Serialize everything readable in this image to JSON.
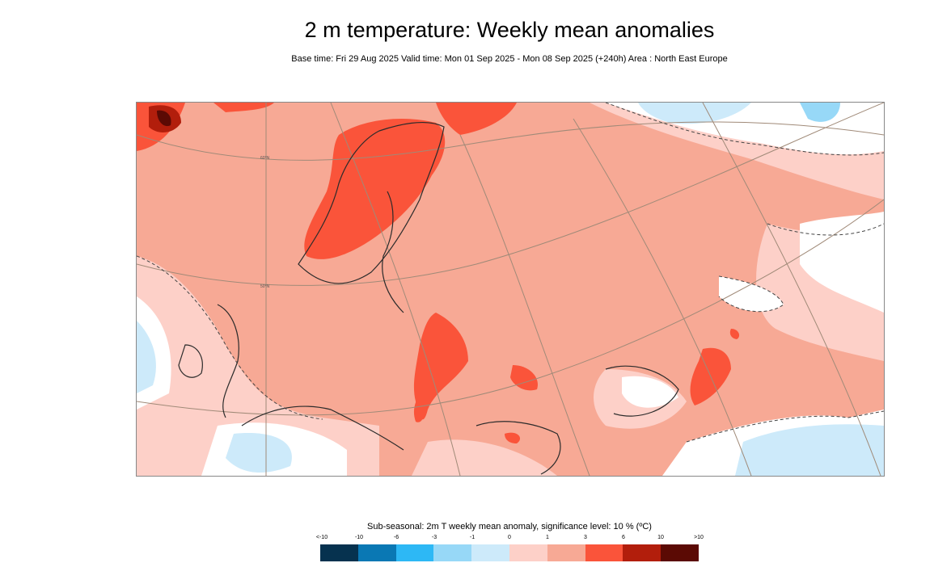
{
  "header": {
    "title": "2 m temperature: Weekly mean anomalies",
    "subtitle": "Base time: Fri 29 Aug 2025 Valid time: Mon 01 Sep 2025 - Mon 08 Sep 2025 (+240h) Area : North East Europe"
  },
  "map": {
    "latitude_labels": [
      "60°N",
      "50°N"
    ]
  },
  "legend": {
    "caption": "Sub-seasonal: 2m T weekly mean anomaly, significance level: 10 % (ºC)",
    "ticks": [
      "<-10",
      "-10",
      "-6",
      "-3",
      "-1",
      "0",
      "1",
      "3",
      "6",
      "10",
      ">10"
    ],
    "colors": [
      "#06324f",
      "#0a78b4",
      "#2db8f5",
      "#97d8f7",
      "#cdeafa",
      "#fdd0c8",
      "#f7a995",
      "#fa543a",
      "#b21e0c",
      "#5b0a04"
    ]
  }
}
